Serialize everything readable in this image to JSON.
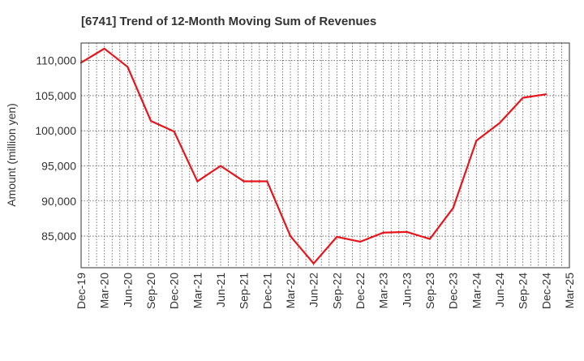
{
  "chart_data": {
    "type": "line",
    "title": "[6741]  Trend of 12-Month Moving Sum of Revenues",
    "xlabel": "",
    "ylabel": "Amount (million yen)",
    "ylim": [
      80500,
      112500
    ],
    "yticks": [
      85000,
      90000,
      95000,
      100000,
      105000,
      110000
    ],
    "ytick_labels": [
      "85,000",
      "90,000",
      "95,000",
      "100,000",
      "105,000",
      "110,000"
    ],
    "categories": [
      "Dec-19",
      "Mar-20",
      "Jun-20",
      "Sep-20",
      "Dec-20",
      "Mar-21",
      "Jun-21",
      "Sep-21",
      "Dec-21",
      "Mar-22",
      "Jun-22",
      "Sep-22",
      "Dec-22",
      "Mar-23",
      "Jun-23",
      "Sep-23",
      "Dec-23",
      "Mar-24",
      "Jun-24",
      "Sep-24",
      "Dec-24",
      "Mar-25"
    ],
    "grid": true,
    "series": [
      {
        "name": "",
        "color": "#e8141b",
        "values": [
          109700,
          111700,
          109100,
          101400,
          99900,
          92800,
          95000,
          92800,
          92800,
          85000,
          81100,
          84900,
          84200,
          85500,
          85600,
          84600,
          89000,
          98600,
          101100,
          104700,
          105200,
          null
        ]
      }
    ]
  }
}
